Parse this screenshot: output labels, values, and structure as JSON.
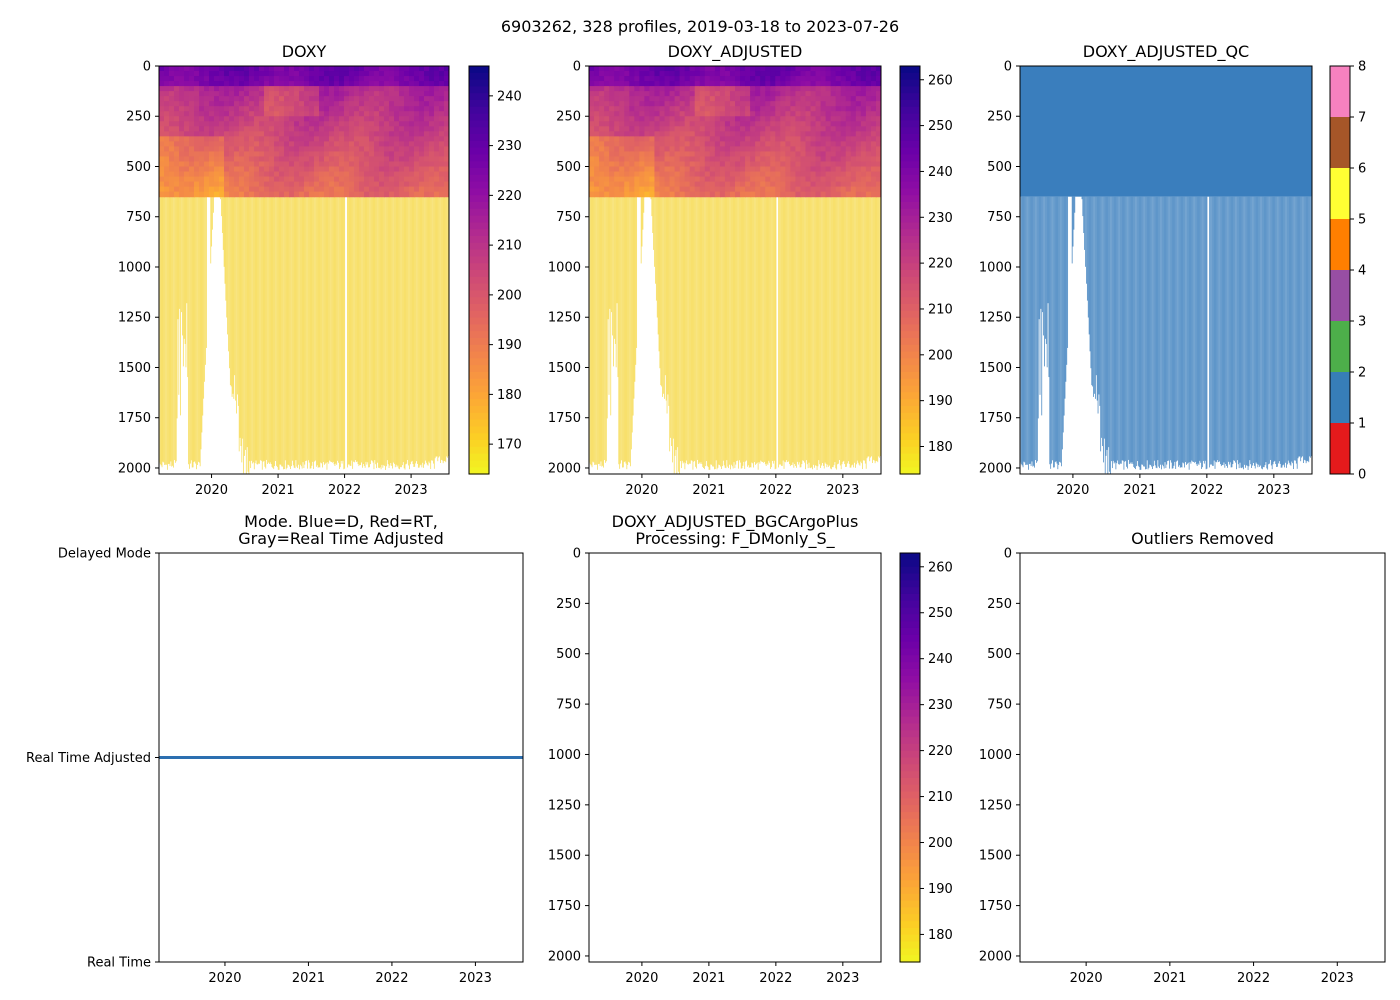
{
  "figure_title": "6903262, 328 profiles, 2019-03-18 to 2023-07-26",
  "colors": {
    "plasma": [
      "#0d0887",
      "#41049d",
      "#6a00a8",
      "#8f0da4",
      "#b12a90",
      "#cc4778",
      "#e16462",
      "#f2844b",
      "#fca636",
      "#fcce25",
      "#f0f921"
    ],
    "qc_classes": [
      "#e41a1c",
      "#377eb8",
      "#4daf4a",
      "#984ea3",
      "#ff7f00",
      "#ffff33",
      "#a65628",
      "#f781bf",
      "#999999"
    ],
    "profile_fill": "#f6d94a",
    "qc_fill": "#3a7ebd",
    "mode_line": "#2c6fb0"
  },
  "chart_data": [
    {
      "id": "doxy",
      "type": "heatmap",
      "title": "DOXY",
      "x_ticks": [
        "2020",
        "2021",
        "2022",
        "2023"
      ],
      "x_tick_values": [
        2020,
        2021,
        2022,
        2023
      ],
      "xlim": [
        2019.21,
        2023.57
      ],
      "y_ticks": [
        "0",
        "250",
        "500",
        "750",
        "1000",
        "1250",
        "1500",
        "1750",
        "2000"
      ],
      "y_tick_values": [
        0,
        250,
        500,
        750,
        1000,
        1250,
        1500,
        1750,
        2000
      ],
      "ylim": [
        2030,
        0
      ],
      "colorbar": {
        "ticks": [
          "170",
          "180",
          "190",
          "200",
          "210",
          "220",
          "230",
          "240"
        ],
        "tick_values": [
          170,
          180,
          190,
          200,
          210,
          220,
          230,
          240
        ],
        "range": [
          164,
          246
        ],
        "cmap": "plasma_r"
      },
      "data": true
    },
    {
      "id": "doxy_adj",
      "type": "heatmap",
      "title": "DOXY_ADJUSTED",
      "x_ticks": [
        "2020",
        "2021",
        "2022",
        "2023"
      ],
      "x_tick_values": [
        2020,
        2021,
        2022,
        2023
      ],
      "xlim": [
        2019.21,
        2023.57
      ],
      "y_ticks": [
        "0",
        "250",
        "500",
        "750",
        "1000",
        "1250",
        "1500",
        "1750",
        "2000"
      ],
      "y_tick_values": [
        0,
        250,
        500,
        750,
        1000,
        1250,
        1500,
        1750,
        2000
      ],
      "ylim": [
        2030,
        0
      ],
      "colorbar": {
        "ticks": [
          "180",
          "190",
          "200",
          "210",
          "220",
          "230",
          "240",
          "250",
          "260"
        ],
        "tick_values": [
          180,
          190,
          200,
          210,
          220,
          230,
          240,
          250,
          260
        ],
        "range": [
          174,
          263
        ],
        "cmap": "plasma_r"
      },
      "data": true
    },
    {
      "id": "qc",
      "type": "heatmap",
      "title": "DOXY_ADJUSTED_QC",
      "x_ticks": [
        "2020",
        "2021",
        "2022",
        "2023"
      ],
      "x_tick_values": [
        2020,
        2021,
        2022,
        2023
      ],
      "xlim": [
        2019.21,
        2023.57
      ],
      "y_ticks": [
        "0",
        "250",
        "500",
        "750",
        "1000",
        "1250",
        "1500",
        "1750",
        "2000"
      ],
      "y_tick_values": [
        0,
        250,
        500,
        750,
        1000,
        1250,
        1500,
        1750,
        2000
      ],
      "ylim": [
        2030,
        0
      ],
      "colorbar": {
        "ticks": [
          "0",
          "1",
          "2",
          "3",
          "4",
          "5",
          "6",
          "7",
          "8"
        ],
        "tick_values": [
          0,
          1,
          2,
          3,
          4,
          5,
          6,
          7,
          8
        ],
        "range": [
          0,
          8
        ],
        "cmap": "qc"
      },
      "data": true
    },
    {
      "id": "mode",
      "type": "line",
      "title": "Mode. Blue=D, Red=RT,\nGray=Real Time Adjusted",
      "x_ticks": [
        "2020",
        "2021",
        "2022",
        "2023"
      ],
      "x_tick_values": [
        2020,
        2021,
        2022,
        2023
      ],
      "xlim": [
        2019.21,
        2023.57
      ],
      "y_ticks": [
        "Delayed Mode",
        "Real Time Adjusted",
        "Real Time"
      ],
      "y_tick_values": [
        2,
        1,
        0
      ],
      "ylim": [
        0,
        2
      ],
      "series": [
        {
          "name": "Real Time Adjusted",
          "x": [
            2019.21,
            2023.57
          ],
          "y": [
            1,
            1
          ]
        }
      ]
    },
    {
      "id": "bgc",
      "type": "heatmap",
      "title": "DOXY_ADJUSTED_BGCArgoPlus\nProcessing: F_DMonly_S_",
      "x_ticks": [
        "2020",
        "2021",
        "2022",
        "2023"
      ],
      "x_tick_values": [
        2020,
        2021,
        2022,
        2023
      ],
      "xlim": [
        2019.21,
        2023.57
      ],
      "y_ticks": [
        "0",
        "250",
        "500",
        "750",
        "1000",
        "1250",
        "1500",
        "1750",
        "2000"
      ],
      "y_tick_values": [
        0,
        250,
        500,
        750,
        1000,
        1250,
        1500,
        1750,
        2000
      ],
      "ylim": [
        2030,
        0
      ],
      "colorbar": {
        "ticks": [
          "180",
          "190",
          "200",
          "210",
          "220",
          "230",
          "240",
          "250",
          "260"
        ],
        "tick_values": [
          180,
          190,
          200,
          210,
          220,
          230,
          240,
          250,
          260
        ],
        "range": [
          174,
          263
        ],
        "cmap": "plasma_r"
      },
      "data": false
    },
    {
      "id": "outliers",
      "type": "heatmap",
      "title": "Outliers Removed",
      "x_ticks": [
        "2020",
        "2021",
        "2022",
        "2023"
      ],
      "x_tick_values": [
        2020,
        2021,
        2022,
        2023
      ],
      "xlim": [
        2019.21,
        2023.57
      ],
      "y_ticks": [
        "0",
        "250",
        "500",
        "750",
        "1000",
        "1250",
        "1500",
        "1750",
        "2000"
      ],
      "y_tick_values": [
        0,
        250,
        500,
        750,
        1000,
        1250,
        1500,
        1750,
        2000
      ],
      "ylim": [
        2030,
        0
      ],
      "data": false
    }
  ]
}
